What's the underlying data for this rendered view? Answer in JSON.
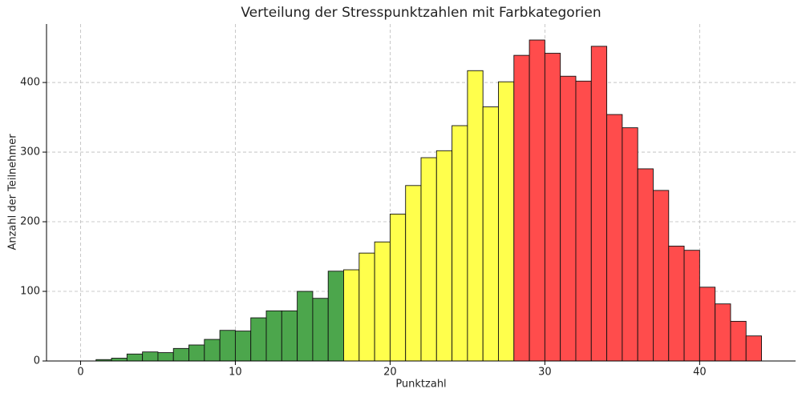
{
  "chart_data": {
    "type": "histogram",
    "title": "Verteilung der Stresspunktzahlen mit Farbkategorien",
    "x_label": "Punktzahl",
    "y_label": "Anzahl der Teilnehmer",
    "bins": [
      0,
      1,
      2,
      3,
      4,
      5,
      6,
      7,
      8,
      9,
      10,
      11,
      12,
      13,
      14,
      15,
      16,
      17,
      18,
      19,
      20,
      21,
      22,
      23,
      24,
      25,
      26,
      27,
      28,
      29,
      30,
      31,
      32,
      33,
      34,
      35,
      36,
      37,
      38,
      39,
      40,
      41,
      42,
      43,
      44
    ],
    "counts": [
      0,
      2,
      4,
      10,
      13,
      12,
      18,
      23,
      31,
      44,
      43,
      62,
      72,
      72,
      100,
      90,
      129,
      131,
      155,
      171,
      211,
      252,
      292,
      302,
      338,
      417,
      365,
      401,
      439,
      461,
      442,
      409,
      402,
      452,
      354,
      335,
      276,
      245,
      165,
      159,
      106,
      82,
      57,
      36
    ],
    "colors": [
      "#4ca64c",
      "#4ca64c",
      "#4ca64c",
      "#4ca64c",
      "#4ca64c",
      "#4ca64c",
      "#4ca64c",
      "#4ca64c",
      "#4ca64c",
      "#4ca64c",
      "#4ca64c",
      "#4ca64c",
      "#4ca64c",
      "#4ca64c",
      "#4ca64c",
      "#4ca64c",
      "#4ca64c",
      "#ffff4c",
      "#ffff4c",
      "#ffff4c",
      "#ffff4c",
      "#ffff4c",
      "#ffff4c",
      "#ffff4c",
      "#ffff4c",
      "#ffff4c",
      "#ffff4c",
      "#ffff4c",
      "#ff4c4c",
      "#ff4c4c",
      "#ff4c4c",
      "#ff4c4c",
      "#ff4c4c",
      "#ff4c4c",
      "#ff4c4c",
      "#ff4c4c",
      "#ff4c4c",
      "#ff4c4c",
      "#ff4c4c",
      "#ff4c4c",
      "#ff4c4c",
      "#ff4c4c",
      "#ff4c4c",
      "#ff4c4c"
    ],
    "xlim": [
      -2.2,
      46.2
    ],
    "ylim": [
      0,
      484
    ],
    "xticks": [
      0,
      10,
      20,
      30,
      40
    ],
    "yticks": [
      0,
      100,
      200,
      300,
      400
    ],
    "grid": true
  }
}
